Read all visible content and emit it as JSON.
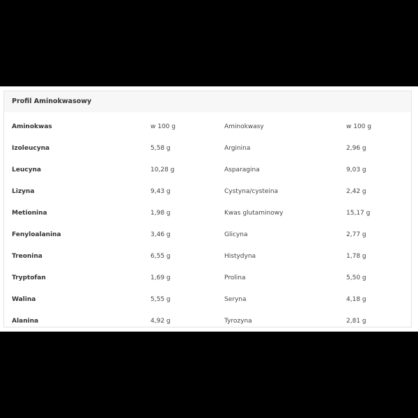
{
  "title": "Profil Aminokwasowy",
  "headers": [
    "Aminokwas",
    "w 100 g",
    "Aminokwasy",
    "w 100 g"
  ],
  "rows": [
    [
      "Izoleucyna",
      "5,58 g",
      "Arginina",
      "2,96 g"
    ],
    [
      "Leucyna",
      "10,28 g",
      "Asparagina",
      "9,03 g"
    ],
    [
      "Lizyna",
      "9,43 g",
      "Cystyna/cysteina",
      "2,42 g"
    ],
    [
      "Metionina",
      "1,98 g",
      "Kwas glutaminowy",
      "15,17 g"
    ],
    [
      "Fenyloalanina",
      "3,46 g",
      "Glicyna",
      "2,77 g"
    ],
    [
      "Treonina",
      "6,55 g",
      "Histydyna",
      "1,78 g"
    ],
    [
      "Tryptofan",
      "1,69 g",
      "Prolina",
      "5,50 g"
    ],
    [
      "Walina",
      "5,55 g",
      "Seryna",
      "4,18 g"
    ],
    [
      "Alanina",
      "4,92 g",
      "Tyrozyna",
      "2,81 g"
    ]
  ]
}
